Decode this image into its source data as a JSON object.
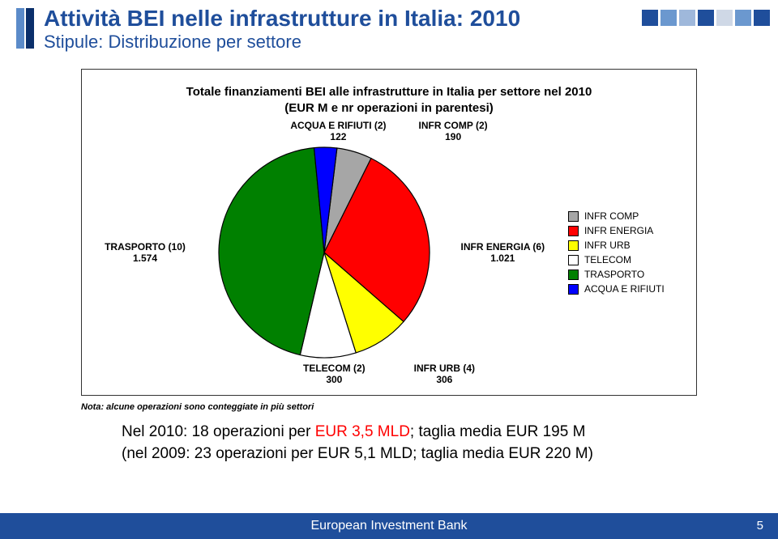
{
  "header": {
    "title": "Attività BEI nelle infrastrutture in Italia: 2010",
    "subtitle": "Stipule: Distribuzione per settore",
    "square_colors": [
      "#1f4e9b",
      "#6b98cf",
      "#9fb8db",
      "#1f4e9b",
      "#cfd8e6",
      "#6b98cf",
      "#1f4e9b"
    ]
  },
  "chart": {
    "caption_line1": "Totale finanziamenti BEI alle infrastrutture in Italia per settore nel 2010",
    "caption_line2": "(EUR M e nr operazioni in parentesi)",
    "background_color": "#ffffff",
    "border_color": "#333333",
    "slices": [
      {
        "key": "INFR_COMP",
        "label": "INFR COMP (2)",
        "value": 190,
        "display": "190",
        "color": "#a6a6a6"
      },
      {
        "key": "INFR_ENERGIA",
        "label": "INFR ENERGIA (6)",
        "value": 1021,
        "display": "1.021",
        "color": "#ff0000"
      },
      {
        "key": "INFR_URB",
        "label": "INFR URB (4)",
        "value": 306,
        "display": "306",
        "color": "#ffff00"
      },
      {
        "key": "TELECOM",
        "label": "TELECOM (2)",
        "value": 300,
        "display": "300",
        "color": "#ffffff"
      },
      {
        "key": "TRASPORTO",
        "label": "TRASPORTO (10)",
        "value": 1574,
        "display": "1.574",
        "color": "#008000"
      },
      {
        "key": "ACQUA",
        "label": "ACQUA E RIFIUTI (2)",
        "value": 122,
        "display": "122",
        "color": "#0000ff"
      }
    ],
    "legend": [
      {
        "label": "INFR COMP",
        "color": "#a6a6a6"
      },
      {
        "label": "INFR ENERGIA",
        "color": "#ff0000"
      },
      {
        "label": "INFR URB",
        "color": "#ffff00"
      },
      {
        "label": "TELECOM",
        "color": "#ffffff"
      },
      {
        "label": "TRASPORTO",
        "color": "#008000"
      },
      {
        "label": "ACQUA E RIFIUTI",
        "color": "#0000ff"
      }
    ],
    "label_fontsize": 12,
    "label_fontweight": "bold",
    "pie_radius": 130,
    "edge_color": "#000000",
    "start_angle": -83
  },
  "note": "Nota: alcune operazioni sono conteggiate in più settori",
  "summary": {
    "line1_a": "Nel 2010: 18 operazioni per ",
    "line1_b": "EUR 3,5 MLD",
    "line1_c": "; taglia media EUR 195 M",
    "line2": "(nel 2009: 23 operazioni per  EUR 5,1 MLD; taglia media EUR 220 M)",
    "highlight_color": "#ff0000"
  },
  "footer": {
    "text": "European Investment Bank",
    "page": "5",
    "bg": "#1f4e9b"
  }
}
